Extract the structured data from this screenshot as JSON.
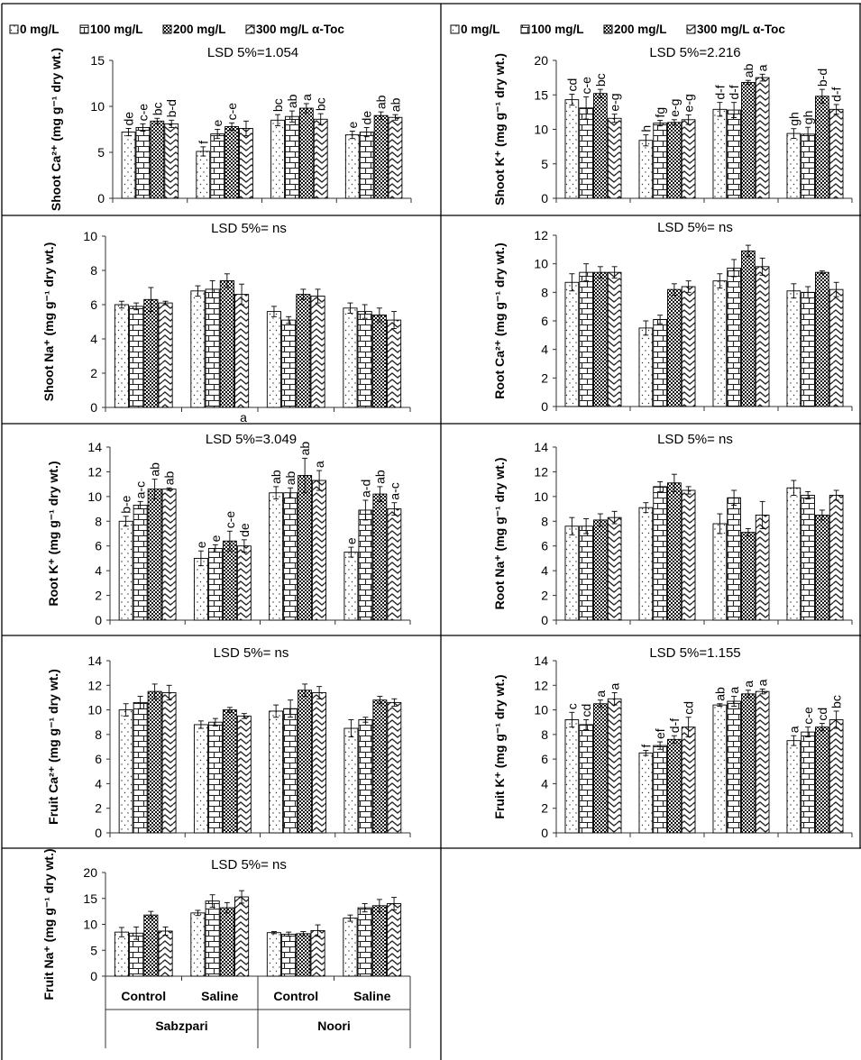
{
  "legend": [
    "0 mg/L",
    "100 mg/L",
    "200 mg/L",
    "300 mg/L α-Toc"
  ],
  "categories": [
    "Control",
    "Saline",
    "Control",
    "Saline"
  ],
  "groups": [
    "Sabzpari",
    "Noori"
  ],
  "patterns": [
    "dots",
    "brick",
    "checker",
    "wave"
  ],
  "chart_data": [
    {
      "type": "bar",
      "ylabel": "Shoot Ca²⁺ (mg g⁻¹ dry wt.)",
      "lsd": "LSD 5%=1.054",
      "ylim": [
        0,
        15
      ],
      "yticks": [
        "0",
        "5",
        "10",
        "15"
      ],
      "series": [
        {
          "name": "0 mg/L",
          "values": [
            7.2,
            5.1,
            8.5,
            6.9
          ],
          "errors": [
            0.4,
            0.5,
            0.6,
            0.4
          ],
          "labels": [
            "de",
            "f",
            "bc",
            "e"
          ]
        },
        {
          "name": "100 mg/L",
          "values": [
            7.7,
            7.0,
            8.9,
            7.2
          ],
          "errors": [
            0.4,
            0.5,
            0.6,
            0.5
          ],
          "labels": [
            "c-e",
            "e",
            "ab",
            "de"
          ]
        },
        {
          "name": "200 mg/L",
          "values": [
            8.4,
            7.8,
            9.8,
            9.0
          ],
          "errors": [
            0.3,
            0.4,
            0.5,
            0.4
          ],
          "labels": [
            "bc",
            "c-e",
            "a",
            "ab"
          ]
        },
        {
          "name": "300 mg/L α-Toc",
          "values": [
            8.1,
            7.6,
            8.6,
            8.8
          ],
          "errors": [
            0.4,
            0.8,
            0.6,
            0.3
          ],
          "labels": [
            "b-d",
            "",
            "bc",
            "ab"
          ]
        }
      ]
    },
    {
      "type": "bar",
      "ylabel": "Shoot K⁺ (mg g⁻¹ dry wt.)",
      "lsd": "LSD 5%=2.216",
      "ylim": [
        0,
        20
      ],
      "yticks": [
        "0",
        "5",
        "10",
        "15",
        "20"
      ],
      "series": [
        {
          "name": "0 mg/L",
          "values": [
            14.3,
            8.4,
            12.9,
            9.4
          ],
          "errors": [
            0.8,
            0.8,
            1.0,
            0.7
          ],
          "labels": [
            "cd",
            "h",
            "d-f",
            "gh"
          ]
        },
        {
          "name": "100 mg/L",
          "values": [
            13.1,
            10.9,
            12.8,
            9.3
          ],
          "errors": [
            1.6,
            0.4,
            1.1,
            1.0
          ],
          "labels": [
            "c-e",
            "fg",
            "d-f",
            "gh"
          ]
        },
        {
          "name": "200 mg/L",
          "values": [
            15.2,
            11.0,
            16.8,
            14.8
          ],
          "errors": [
            0.6,
            0.4,
            0.3,
            1.0
          ],
          "labels": [
            "bc",
            "e-g",
            "ab",
            "b-d"
          ]
        },
        {
          "name": "300 mg/L α-Toc",
          "values": [
            11.6,
            11.4,
            17.5,
            12.9
          ],
          "errors": [
            0.6,
            0.7,
            0.5,
            0.7
          ],
          "labels": [
            "e-g",
            "e-g",
            "a",
            "d-f"
          ]
        }
      ]
    },
    {
      "type": "bar",
      "ylabel": "Shoot Na⁺ (mg g⁻¹ dry wt.)",
      "lsd": "LSD 5%= ns",
      "ylim": [
        0,
        10
      ],
      "yticks": [
        "0",
        "2",
        "4",
        "6",
        "8",
        "10"
      ],
      "extra_text": "a",
      "series": [
        {
          "name": "0 mg/L",
          "values": [
            6.0,
            6.8,
            5.6,
            5.8
          ],
          "errors": [
            0.2,
            0.3,
            0.3,
            0.3
          ]
        },
        {
          "name": "100 mg/L",
          "values": [
            5.9,
            6.9,
            5.1,
            5.6
          ],
          "errors": [
            0.2,
            0.5,
            0.2,
            0.4
          ]
        },
        {
          "name": "200 mg/L",
          "values": [
            6.3,
            7.4,
            6.6,
            5.4
          ],
          "errors": [
            0.7,
            0.4,
            0.3,
            0.4
          ]
        },
        {
          "name": "300 mg/L α-Toc",
          "values": [
            6.1,
            6.6,
            6.5,
            5.1
          ],
          "errors": [
            0.1,
            0.6,
            0.4,
            0.5
          ]
        }
      ]
    },
    {
      "type": "bar",
      "ylabel": "Root Ca²⁺ (mg g⁻¹ dry wt.)",
      "lsd": "LSD 5%= ns",
      "ylim": [
        0,
        12
      ],
      "yticks": [
        "0",
        "2",
        "4",
        "6",
        "8",
        "10",
        "12"
      ],
      "series": [
        {
          "name": "0 mg/L",
          "values": [
            8.7,
            5.5,
            8.8,
            8.1
          ],
          "errors": [
            0.6,
            0.5,
            0.5,
            0.5
          ]
        },
        {
          "name": "100 mg/L",
          "values": [
            9.4,
            6.1,
            9.7,
            8.0
          ],
          "errors": [
            0.6,
            0.3,
            0.6,
            0.4
          ]
        },
        {
          "name": "200 mg/L",
          "values": [
            9.4,
            8.2,
            10.9,
            9.4
          ],
          "errors": [
            0.4,
            0.4,
            0.4,
            0.1
          ]
        },
        {
          "name": "300 mg/L α-Toc",
          "values": [
            9.4,
            8.4,
            9.8,
            8.2
          ],
          "errors": [
            0.4,
            0.4,
            0.6,
            0.5
          ]
        }
      ]
    },
    {
      "type": "bar",
      "ylabel": "Root K⁺ (mg g⁻¹ dry wt.)",
      "lsd": "LSD 5%=3.049",
      "ylim": [
        0,
        14
      ],
      "yticks": [
        "0",
        "2",
        "4",
        "6",
        "8",
        "10",
        "12",
        "14"
      ],
      "series": [
        {
          "name": "0 mg/L",
          "values": [
            8.0,
            5.0,
            10.3,
            5.5
          ],
          "errors": [
            0.4,
            0.6,
            0.5,
            0.4
          ],
          "labels": [
            "b-e",
            "e",
            "ab",
            "e"
          ]
        },
        {
          "name": "100 mg/L",
          "values": [
            9.3,
            5.8,
            10.3,
            8.9
          ],
          "errors": [
            0.3,
            0.3,
            0.4,
            0.8
          ],
          "labels": [
            "a-c",
            "e",
            "ab",
            "a-d"
          ]
        },
        {
          "name": "200 mg/L",
          "values": [
            10.6,
            6.4,
            11.7,
            10.2
          ],
          "errors": [
            0.8,
            0.8,
            1.4,
            0.6
          ],
          "labels": [
            "ab",
            "c-e",
            "ab",
            "ab"
          ]
        },
        {
          "name": "300 mg/L α-Toc",
          "values": [
            10.6,
            6.0,
            11.3,
            9.0
          ],
          "errors": [
            0.1,
            0.5,
            0.8,
            0.5
          ],
          "labels": [
            "ab",
            "de",
            "a",
            "a-c"
          ]
        }
      ]
    },
    {
      "type": "bar",
      "ylabel": "Root Na⁺ (mg g⁻¹ dry wt.)",
      "lsd": "LSD 5%= ns",
      "ylim": [
        0,
        14
      ],
      "yticks": [
        "0",
        "2",
        "4",
        "6",
        "8",
        "10",
        "12",
        "14"
      ],
      "series": [
        {
          "name": "0 mg/L",
          "values": [
            7.6,
            9.1,
            7.8,
            10.7
          ],
          "errors": [
            0.7,
            0.4,
            0.8,
            0.6
          ]
        },
        {
          "name": "100 mg/L",
          "values": [
            7.6,
            10.8,
            9.9,
            10.1
          ],
          "errors": [
            0.6,
            0.4,
            0.6,
            0.3
          ]
        },
        {
          "name": "200 mg/L",
          "values": [
            8.1,
            11.1,
            7.1,
            8.5
          ],
          "errors": [
            0.5,
            0.7,
            0.3,
            0.4
          ]
        },
        {
          "name": "300 mg/L α-Toc",
          "values": [
            8.3,
            10.5,
            8.5,
            10.1
          ],
          "errors": [
            0.5,
            0.3,
            1.1,
            0.4
          ]
        }
      ]
    },
    {
      "type": "bar",
      "ylabel": "Fruit Ca²⁺ (mg g⁻¹ dry wt.)",
      "lsd": "LSD 5%= ns",
      "ylim": [
        0,
        14
      ],
      "yticks": [
        "0",
        "2",
        "4",
        "6",
        "8",
        "10",
        "12",
        "14"
      ],
      "series": [
        {
          "name": "0 mg/L",
          "values": [
            10.0,
            8.8,
            9.9,
            8.5
          ],
          "errors": [
            0.5,
            0.3,
            0.5,
            0.7
          ]
        },
        {
          "name": "100 mg/L",
          "values": [
            10.6,
            9.0,
            10.1,
            9.2
          ],
          "errors": [
            0.5,
            0.3,
            0.7,
            0.2
          ]
        },
        {
          "name": "200 mg/L",
          "values": [
            11.5,
            10.0,
            11.6,
            10.8
          ],
          "errors": [
            0.6,
            0.2,
            0.5,
            0.3
          ]
        },
        {
          "name": "300 mg/L α-Toc",
          "values": [
            11.4,
            9.5,
            11.4,
            10.6
          ],
          "errors": [
            0.6,
            0.2,
            0.5,
            0.3
          ]
        }
      ]
    },
    {
      "type": "bar",
      "ylabel": "Fruit K⁺ (mg g⁻¹ dry wt.)",
      "lsd": "LSD 5%=1.155",
      "ylim": [
        0,
        14
      ],
      "yticks": [
        "0",
        "2",
        "4",
        "6",
        "8",
        "10",
        "12",
        "14"
      ],
      "series": [
        {
          "name": "0 mg/L",
          "values": [
            9.2,
            6.5,
            10.4,
            7.5
          ],
          "errors": [
            0.6,
            0.2,
            0.1,
            0.4
          ],
          "labels": [
            "c",
            "f",
            "ab",
            "a"
          ]
        },
        {
          "name": "100 mg/L",
          "values": [
            8.8,
            7.1,
            10.7,
            8.2
          ],
          "errors": [
            0.4,
            0.3,
            0.4,
            0.4
          ],
          "labels": [
            "cd",
            "ef",
            "a",
            "c-e"
          ]
        },
        {
          "name": "200 mg/L",
          "values": [
            10.5,
            7.6,
            11.3,
            8.6
          ],
          "errors": [
            0.3,
            0.3,
            0.3,
            0.3
          ],
          "labels": [
            "a",
            "d-f",
            "a",
            "cd"
          ]
        },
        {
          "name": "300 mg/L α-Toc",
          "values": [
            10.9,
            8.6,
            11.5,
            9.2
          ],
          "errors": [
            0.5,
            0.8,
            0.2,
            0.7
          ],
          "labels": [
            "a",
            "cd",
            "a",
            "bc"
          ]
        }
      ]
    },
    {
      "type": "bar",
      "ylabel": "Fruit Na⁺ (mg g⁻¹ dry wt.)",
      "lsd": "LSD 5%= ns",
      "ylim": [
        0,
        20
      ],
      "yticks": [
        "0",
        "5",
        "10",
        "15",
        "20"
      ],
      "series": [
        {
          "name": "0 mg/L",
          "values": [
            8.5,
            12.2,
            8.4,
            11.2
          ],
          "errors": [
            0.9,
            0.5,
            0.2,
            0.6
          ]
        },
        {
          "name": "100 mg/L",
          "values": [
            8.3,
            14.5,
            8.1,
            13.2
          ],
          "errors": [
            1.2,
            1.2,
            0.4,
            0.8
          ]
        },
        {
          "name": "200 mg/L",
          "values": [
            11.8,
            13.2,
            8.2,
            13.6
          ],
          "errors": [
            0.7,
            1.0,
            0.4,
            1.2
          ]
        },
        {
          "name": "300 mg/L α-Toc",
          "values": [
            8.7,
            15.3,
            8.8,
            14.0
          ],
          "errors": [
            0.8,
            1.2,
            1.1,
            1.2
          ]
        }
      ]
    }
  ]
}
